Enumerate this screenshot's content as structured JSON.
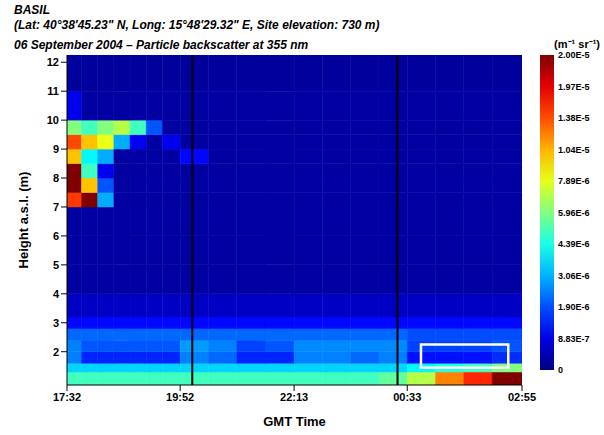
{
  "chart_data": {
    "type": "heatmap",
    "title": "BASIL",
    "subtitle": "(Lat: 40°38'45.23\" N, Long: 15°48'29.32\" E, Site elevation: 730 m)",
    "annotation": "06 September 2004 – Particle backscatter at 355 nm",
    "x_label": "GMT Time",
    "y_label": "Height a.s.l. (m)",
    "xlim": [
      1052,
      1615
    ],
    "xticks": [
      {
        "value": 1052,
        "label": "17:32"
      },
      {
        "value": 1192,
        "label": "19:52"
      },
      {
        "value": 1333,
        "label": "22:13"
      },
      {
        "value": 1473,
        "label": "00:33"
      },
      {
        "value": 1615,
        "label": "02:55"
      }
    ],
    "ylim": [
      0.85,
      12.25
    ],
    "yticks": [
      2,
      3,
      4,
      5,
      6,
      7,
      8,
      9,
      10,
      11,
      12
    ],
    "grid": false,
    "x_edges": [
      1052,
      1070,
      1090,
      1110,
      1130,
      1150,
      1170,
      1192,
      1227,
      1262,
      1297,
      1333,
      1368,
      1403,
      1438,
      1473,
      1508,
      1543,
      1578,
      1615
    ],
    "y_edges": [
      0.85,
      1.3,
      1.6,
      2.0,
      2.4,
      2.8,
      3.2,
      4,
      5,
      6,
      7,
      7.5,
      8,
      8.5,
      9,
      9.5,
      10,
      11,
      12.25
    ],
    "cells": [
      [
        5e-06,
        5e-06,
        5e-06,
        5e-06,
        5e-06,
        5e-06,
        5e-06,
        5e-06,
        5e-06,
        5e-06,
        5e-06,
        5e-06,
        5e-06,
        5e-06,
        5.5e-06,
        7e-06,
        1.2e-05,
        1.6e-05,
        2e-05
      ],
      [
        3.5e-06,
        3.5e-06,
        3.5e-06,
        3.5e-06,
        3.5e-06,
        3.5e-06,
        3.5e-06,
        3.5e-06,
        3.5e-06,
        3.5e-06,
        3.5e-06,
        3.5e-06,
        3.5e-06,
        3.5e-06,
        3.5e-06,
        4e-06,
        4.5e-06,
        5e-06,
        6e-06
      ],
      [
        2.5e-06,
        1.5e-06,
        1.5e-06,
        1.5e-06,
        1.5e-06,
        1.5e-06,
        1.5e-06,
        2.5e-06,
        2.2e-06,
        1.5e-06,
        1.5e-06,
        2.5e-06,
        2.5e-06,
        2.2e-06,
        2.5e-06,
        1.3e-06,
        1.3e-06,
        1.3e-06,
        1.6e-06
      ],
      [
        2.5e-06,
        2e-06,
        2e-06,
        2e-06,
        2e-06,
        2e-06,
        2e-06,
        2.8e-06,
        2.5e-06,
        1.8e-06,
        2e-06,
        2.6e-06,
        2.6e-06,
        2.6e-06,
        2.6e-06,
        1.8e-06,
        1.8e-06,
        1.8e-06,
        2e-06
      ],
      [
        2.2e-06,
        2.2e-06,
        2.2e-06,
        2.2e-06,
        2.2e-06,
        2.2e-06,
        2.2e-06,
        2.2e-06,
        2.2e-06,
        2.2e-06,
        2.2e-06,
        2.2e-06,
        2.2e-06,
        2.2e-06,
        2.2e-06,
        1.9e-06,
        1.9e-06,
        1.9e-06,
        1.9e-06
      ],
      [
        1.2e-06,
        1.2e-06,
        1.2e-06,
        1.2e-06,
        1.2e-06,
        1.2e-06,
        1.2e-06,
        1.2e-06,
        1.2e-06,
        1.2e-06,
        1.2e-06,
        1.2e-06,
        1.2e-06,
        1.2e-06,
        1.2e-06,
        1.2e-06,
        1.2e-06,
        1.2e-06,
        1.2e-06
      ],
      [
        6e-07,
        6e-07,
        6e-07,
        6e-07,
        6e-07,
        6e-07,
        6e-07,
        6e-07,
        6e-07,
        6e-07,
        6e-07,
        6e-07,
        6e-07,
        6e-07,
        6e-07,
        6e-07,
        6e-07,
        6e-07,
        6e-07
      ],
      [
        3e-07,
        3e-07,
        3e-07,
        3e-07,
        3e-07,
        3e-07,
        3e-07,
        3e-07,
        3e-07,
        3e-07,
        3e-07,
        3e-07,
        3e-07,
        3e-07,
        3e-07,
        3e-07,
        3e-07,
        3e-07,
        3e-07
      ],
      [
        3e-07,
        3e-07,
        3e-07,
        3e-07,
        3e-07,
        3e-07,
        3e-07,
        3e-07,
        3e-07,
        3e-07,
        3e-07,
        3e-07,
        3e-07,
        3e-07,
        3e-07,
        3e-07,
        3e-07,
        3e-07,
        3e-07
      ],
      [
        3e-07,
        3e-07,
        3e-07,
        3e-07,
        3e-07,
        3e-07,
        3e-07,
        3e-07,
        3e-07,
        3e-07,
        3e-07,
        3e-07,
        3e-07,
        3e-07,
        3e-07,
        3e-07,
        3e-07,
        3e-07,
        3e-07
      ],
      [
        1.5e-05,
        2e-05,
        3e-06,
        3e-07,
        3e-07,
        3e-07,
        3e-07,
        3e-07,
        3e-07,
        3e-07,
        3e-07,
        3e-07,
        3e-07,
        3e-07,
        3e-07,
        3e-07,
        3e-07,
        3e-07,
        3e-07
      ],
      [
        2e-05,
        1e-05,
        2e-06,
        3e-07,
        3e-07,
        3e-07,
        3e-07,
        3e-07,
        3e-07,
        3e-07,
        3e-07,
        3e-07,
        3e-07,
        3e-07,
        3e-07,
        3e-07,
        3e-07,
        3e-07,
        3e-07
      ],
      [
        2e-05,
        5e-06,
        1e-06,
        3e-07,
        3e-07,
        3e-07,
        3e-07,
        3e-07,
        3e-07,
        3e-07,
        3e-07,
        3e-07,
        3e-07,
        3e-07,
        3e-07,
        3e-07,
        3e-07,
        3e-07,
        3e-07
      ],
      [
        1e-05,
        4e-06,
        3e-06,
        3e-07,
        3e-07,
        3e-07,
        3e-07,
        1.2e-06,
        3e-07,
        3e-07,
        3e-07,
        3e-07,
        3e-07,
        3e-07,
        3e-07,
        3e-07,
        3e-07,
        3e-07,
        3e-07
      ],
      [
        1.4e-05,
        1e-05,
        8e-06,
        3e-06,
        1e-06,
        3e-07,
        1e-06,
        3e-07,
        3e-07,
        3e-07,
        3e-07,
        3e-07,
        3e-07,
        3e-07,
        3e-07,
        3e-07,
        3e-07,
        3e-07,
        3e-07
      ],
      [
        6e-06,
        5e-06,
        6e-06,
        7e-06,
        5e-06,
        2e-06,
        3e-07,
        3e-07,
        3e-07,
        3e-07,
        3e-07,
        3e-07,
        3e-07,
        3e-07,
        3e-07,
        3e-07,
        3e-07,
        3e-07,
        3e-07
      ],
      [
        1e-06,
        3e-07,
        3e-07,
        3e-07,
        3e-07,
        3e-07,
        3e-07,
        3e-07,
        3e-07,
        3e-07,
        3e-07,
        3e-07,
        3e-07,
        3e-07,
        3e-07,
        3e-07,
        3e-07,
        3e-07,
        3e-07
      ],
      [
        2.5e-07,
        2.5e-07,
        2.5e-07,
        2.5e-07,
        2.5e-07,
        2.5e-07,
        2.5e-07,
        2.5e-07,
        2.5e-07,
        2.5e-07,
        2.5e-07,
        2.5e-07,
        2.5e-07,
        2.5e-07,
        2.5e-07,
        2.5e-07,
        2.5e-07,
        2.5e-07,
        2.5e-07
      ]
    ],
    "gaps": [
      1207,
      1461
    ],
    "box": {
      "x": [
        1490,
        1598
      ],
      "y": [
        1.45,
        2.25
      ]
    },
    "colorbar": {
      "label": "(m⁻¹ sr⁻¹)",
      "ticks": [
        0,
        {
          "value": 8.83e-07,
          "label": "8.83E-7"
        },
        {
          "value": 1.9e-06,
          "label": "1.90E-6"
        },
        {
          "value": 3.06e-06,
          "label": "3.06E-6"
        },
        {
          "value": 4.39e-06,
          "label": "4.39E-6"
        },
        {
          "value": 5.96e-06,
          "label": "5.96E-6"
        },
        {
          "value": 7.89e-06,
          "label": "7.89E-6"
        },
        {
          "value": 1.04e-05,
          "label": "1.04E-5"
        },
        {
          "value": 1.38e-05,
          "label": "1.38E-5"
        },
        {
          "value": 1.97e-05,
          "label": "1.97E-5"
        },
        {
          "value": 2e-05,
          "label": "2.00E-5"
        }
      ]
    }
  }
}
